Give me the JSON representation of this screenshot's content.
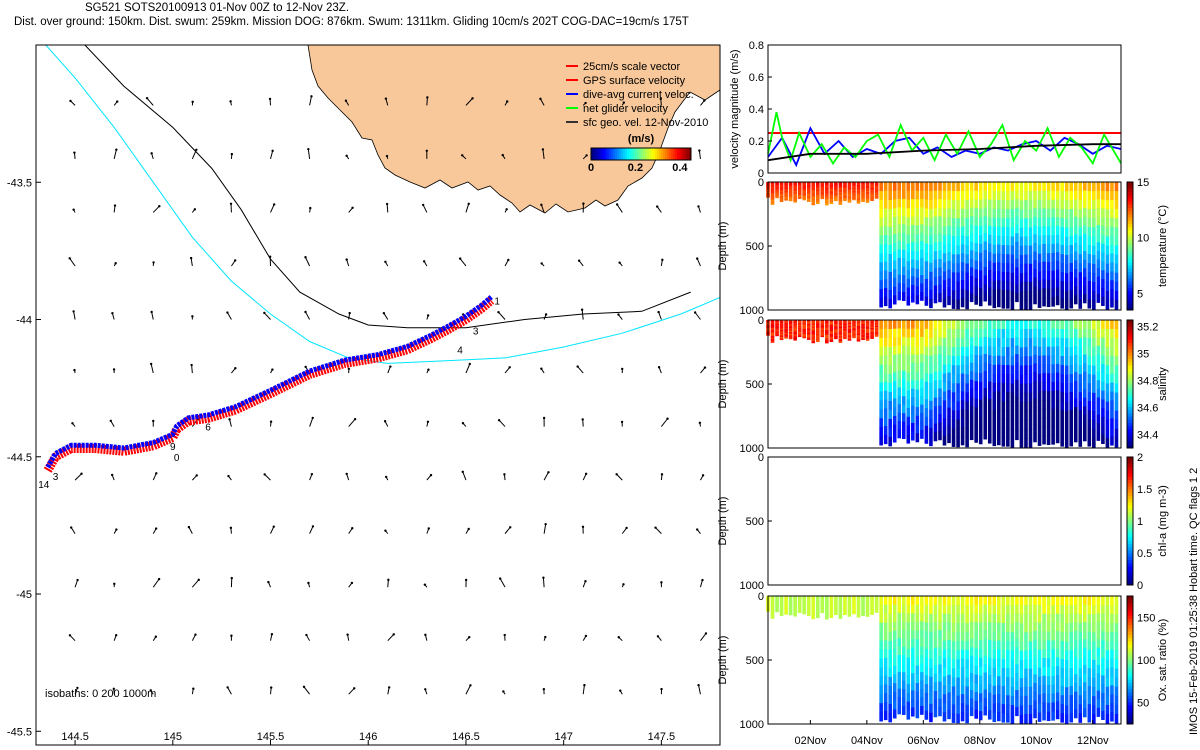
{
  "title": {
    "line1": "SG521 SOTS20100913 01-Nov 00Z to 12-Nov 23Z.",
    "line2": "Dist. over ground: 150km. Dist. swum: 259km. Mission DOG: 876km. Swum: 1311km. Gliding 10cm/s 202T COG-DAC=19cm/s 175T"
  },
  "side_note": "IMOS 15-Feb-2019 01:25:38 Hobart time. QC flags 1  2",
  "colors": {
    "land": "#f8c89a",
    "track_red": "#ff0000",
    "track_blue": "#0000ff",
    "isobath_black": "#000000",
    "isobath_cyan": "#00e5ff",
    "vel_red": "#ff0000",
    "vel_blue": "#0000ff",
    "vel_green": "#00ff00",
    "vel_black": "#000000"
  },
  "chart_data": [
    {
      "type": "scatter",
      "subtype": "map-track-with-current-vectors",
      "xlim": [
        144.3,
        147.8
      ],
      "ylim": [
        -45.55,
        -43.0
      ],
      "xticks": [
        "144.5",
        "145",
        "145.5",
        "146",
        "146.5",
        "147",
        "147.5"
      ],
      "yticks": [
        "-43.5",
        "-44",
        "-44.5",
        "-45",
        "-45.5"
      ],
      "legend": {
        "placement": "top-right",
        "entries": [
          "25cm/s scale vector",
          "GPS surface velocity",
          "dive-avg current veloc.",
          "net glider velocity",
          "sfc geo. vel. 12-Nov-2010"
        ]
      },
      "colorbar": {
        "label": "(m/s)",
        "ticks": [
          "0",
          "0.2",
          "0.4"
        ],
        "range": [
          0,
          0.45
        ]
      },
      "isobath_label": "isobaths: 0   200  1000m",
      "track": {
        "lon": [
          144.36,
          144.4,
          144.48,
          144.6,
          144.75,
          144.9,
          145.0,
          145.02,
          145.08,
          145.18,
          145.32,
          145.5,
          145.7,
          145.88,
          146.05,
          146.2,
          146.32,
          146.4,
          146.5,
          146.58,
          146.63
        ],
        "lat": [
          -44.55,
          -44.5,
          -44.47,
          -44.47,
          -44.48,
          -44.46,
          -44.43,
          -44.4,
          -44.37,
          -44.36,
          -44.33,
          -44.27,
          -44.2,
          -44.16,
          -44.14,
          -44.11,
          -44.07,
          -44.04,
          -44.0,
          -43.96,
          -43.93
        ]
      },
      "track_labels": [
        {
          "text": "1",
          "lon": 146.66,
          "lat": -43.93
        },
        {
          "text": "3",
          "lon": 146.55,
          "lat": -44.04
        },
        {
          "text": "4",
          "lon": 146.47,
          "lat": -44.11
        },
        {
          "text": "6",
          "lon": 145.18,
          "lat": -44.39
        },
        {
          "text": "9",
          "lon": 145.0,
          "lat": -44.46
        },
        {
          "text": "0",
          "lon": 145.02,
          "lat": -44.5
        },
        {
          "text": "3",
          "lon": 144.4,
          "lat": -44.57
        },
        {
          "text": "14",
          "lon": 144.34,
          "lat": -44.6
        }
      ],
      "isobath_0": {
        "lon": [
          144.55,
          144.75,
          145.0,
          145.2,
          145.35,
          145.5,
          145.65,
          145.85,
          146.0,
          146.2,
          146.5,
          146.8,
          147.1,
          147.4,
          147.65
        ],
        "lat": [
          -43.0,
          -43.15,
          -43.3,
          -43.45,
          -43.6,
          -43.78,
          -43.9,
          -43.98,
          -44.02,
          -44.03,
          -44.03,
          -44.0,
          -43.98,
          -43.97,
          -43.9
        ]
      },
      "isobath_1000": {
        "lon": [
          144.35,
          144.5,
          144.7,
          144.9,
          145.1,
          145.3,
          145.5,
          145.7,
          145.9,
          146.1,
          146.4,
          146.7,
          147.0,
          147.3,
          147.6,
          147.8
        ],
        "lat": [
          -43.0,
          -43.12,
          -43.3,
          -43.5,
          -43.7,
          -43.86,
          -43.98,
          -44.08,
          -44.14,
          -44.16,
          -44.15,
          -44.14,
          -44.1,
          -44.05,
          -43.98,
          -43.92
        ]
      }
    },
    {
      "type": "line",
      "ylabel": "velocity magnitude (m/s)",
      "ylim": [
        0,
        0.8
      ],
      "yticks": [
        "0",
        "0.2",
        "0.4",
        "0.6",
        "0.8"
      ],
      "x_range_days": [
        0.5,
        13.0
      ],
      "series": [
        {
          "color": "red",
          "x": [
            0.5,
            13.0
          ],
          "y": [
            0.25,
            0.25
          ]
        },
        {
          "color": "blue",
          "x": [
            0.5,
            1.0,
            1.5,
            2.0,
            2.5,
            3.0,
            3.5,
            4.0,
            4.5,
            5.0,
            5.5,
            6.0,
            6.5,
            7.0,
            7.5,
            8.0,
            8.5,
            9.0,
            9.5,
            10.0,
            10.5,
            11.0,
            11.5,
            12.0,
            12.5,
            13.0
          ],
          "y": [
            0.1,
            0.22,
            0.05,
            0.28,
            0.12,
            0.2,
            0.1,
            0.15,
            0.12,
            0.2,
            0.22,
            0.12,
            0.16,
            0.1,
            0.14,
            0.12,
            0.16,
            0.14,
            0.18,
            0.2,
            0.14,
            0.22,
            0.18,
            0.12,
            0.17,
            0.15
          ]
        },
        {
          "color": "green",
          "x": [
            0.5,
            0.8,
            1.0,
            1.3,
            1.6,
            2.0,
            2.4,
            2.8,
            3.2,
            3.6,
            4.0,
            4.4,
            4.8,
            5.2,
            5.6,
            6.0,
            6.4,
            6.8,
            7.2,
            7.6,
            8.0,
            8.4,
            8.8,
            9.2,
            9.6,
            10.0,
            10.4,
            10.8,
            11.2,
            11.6,
            12.0,
            12.4,
            12.8,
            13.0
          ],
          "y": [
            0.12,
            0.38,
            0.22,
            0.08,
            0.25,
            0.1,
            0.18,
            0.06,
            0.16,
            0.1,
            0.2,
            0.24,
            0.1,
            0.3,
            0.14,
            0.22,
            0.08,
            0.24,
            0.12,
            0.26,
            0.1,
            0.18,
            0.3,
            0.08,
            0.2,
            0.14,
            0.28,
            0.1,
            0.22,
            0.16,
            0.06,
            0.24,
            0.12,
            0.06
          ]
        },
        {
          "color": "black",
          "x": [
            0.5,
            2.0,
            4.0,
            6.0,
            8.0,
            10.0,
            12.0,
            13.0
          ],
          "y": [
            0.08,
            0.12,
            0.12,
            0.14,
            0.15,
            0.17,
            0.18,
            0.18
          ]
        }
      ]
    },
    {
      "type": "heatmap",
      "ylabel": "Depth (m)",
      "colorbar_label": "temperature (°C)",
      "yticks": [
        "0",
        "500",
        "1000"
      ],
      "ylim": [
        0,
        1000
      ],
      "cbar_ticks": [
        "5",
        "10",
        "15"
      ],
      "cbar_range": [
        3.5,
        15
      ],
      "dive_depth": 1000,
      "shallow_depth": 120,
      "switch_day": 4.5
    },
    {
      "type": "heatmap",
      "ylabel": "Depth (m)",
      "colorbar_label": "salinity",
      "yticks": [
        "0",
        "500",
        "1000"
      ],
      "ylim": [
        0,
        1000
      ],
      "cbar_ticks": [
        "34.4",
        "34.6",
        "34.8",
        "35",
        "35.2"
      ],
      "cbar_range": [
        34.3,
        35.25
      ],
      "dive_depth": 1000,
      "shallow_depth": 120,
      "switch_day": 4.5
    },
    {
      "type": "heatmap",
      "ylabel": "Depth (m)",
      "colorbar_label": "chl-a (mg m-3)",
      "yticks": [
        "0",
        "500",
        "1000"
      ],
      "ylim": [
        0,
        1000
      ],
      "cbar_ticks": [
        "0",
        "0.5",
        "1",
        "1.5",
        "2"
      ],
      "cbar_range": [
        0,
        2
      ],
      "empty": true
    },
    {
      "type": "heatmap",
      "ylabel": "Depth (m)",
      "colorbar_label": "Ox. sat. ratio (%)",
      "yticks": [
        "0",
        "500",
        "1000"
      ],
      "ylim": [
        0,
        1000
      ],
      "cbar_ticks": [
        "50",
        "100",
        "150"
      ],
      "cbar_range": [
        25,
        175
      ],
      "dive_depth": 1000,
      "shallow_depth": 120,
      "switch_day": 4.5,
      "xticks": [
        "02Nov",
        "04Nov",
        "06Nov",
        "08Nov",
        "10Nov",
        "12Nov"
      ]
    }
  ]
}
